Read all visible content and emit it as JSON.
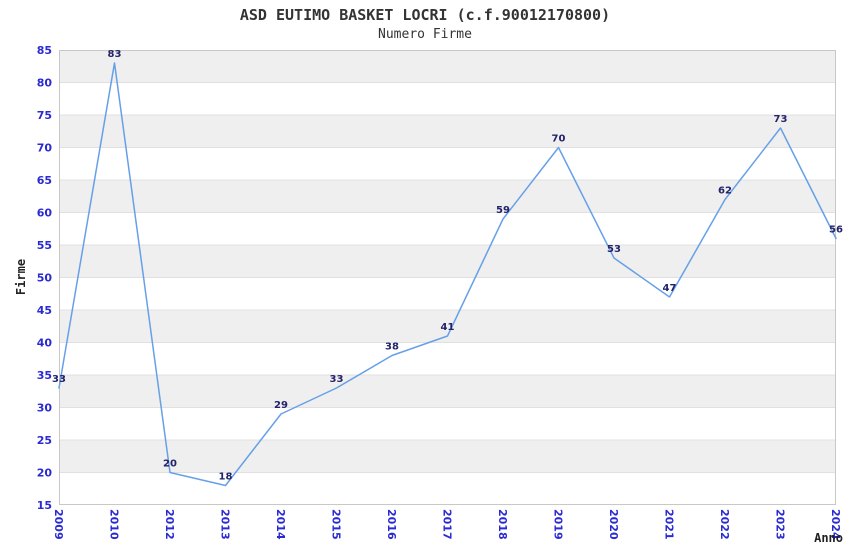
{
  "chart": {
    "title": "ASD EUTIMO BASKET LOCRI (c.f.90012170800)",
    "subtitle": "Numero Firme",
    "ylabel": "Firme",
    "xlabel": "Anno"
  },
  "chart_data": {
    "type": "line",
    "title": "ASD EUTIMO BASKET LOCRI (c.f.90012170800)",
    "subtitle": "Numero Firme",
    "xlabel": "Anno",
    "ylabel": "Firme",
    "categories": [
      "2009",
      "2010",
      "2012",
      "2013",
      "2014",
      "2015",
      "2016",
      "2017",
      "2018",
      "2019",
      "2020",
      "2021",
      "2022",
      "2023",
      "2024"
    ],
    "values": [
      33,
      83,
      20,
      18,
      29,
      33,
      38,
      41,
      59,
      70,
      53,
      47,
      62,
      73,
      56
    ],
    "ylim": [
      15,
      85
    ],
    "ytick_step": 5,
    "grid": true,
    "legend": "none",
    "band_color": "#efefef",
    "grid_color": "#e0e0e0",
    "border_color": "#c8c8c8",
    "line_color": "#66a0e8",
    "tick_label_color": "#2a2ad2",
    "data_label_color": "#23236a"
  }
}
